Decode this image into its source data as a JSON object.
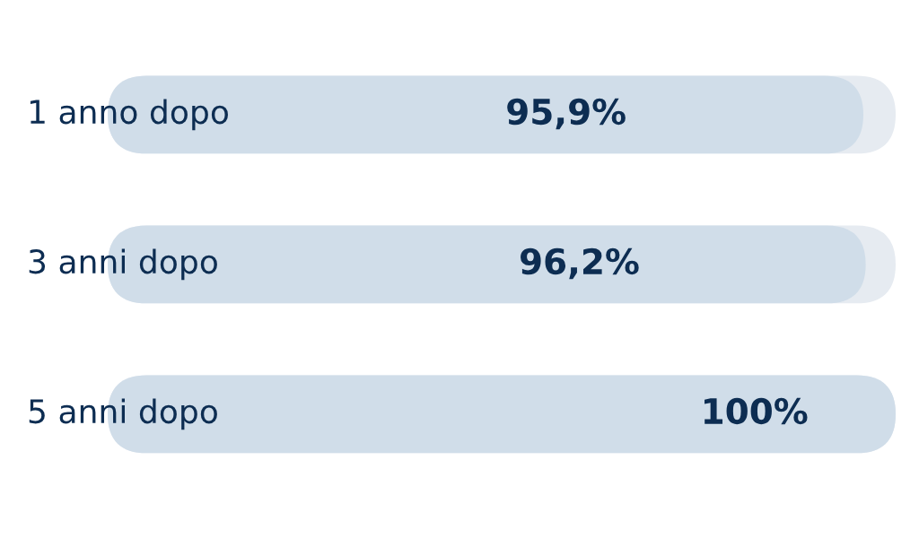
{
  "chart_data": {
    "type": "bar",
    "orientation": "horizontal",
    "categories": [
      "1 anno dopo",
      "3 anni dopo",
      "5 anni dopo"
    ],
    "series": [
      {
        "color": "#d0dde9",
        "values": [
          95.9,
          96.2,
          100
        ],
        "value_labels": [
          "95,9%",
          "96,2%",
          "100%"
        ]
      }
    ]
  }
}
